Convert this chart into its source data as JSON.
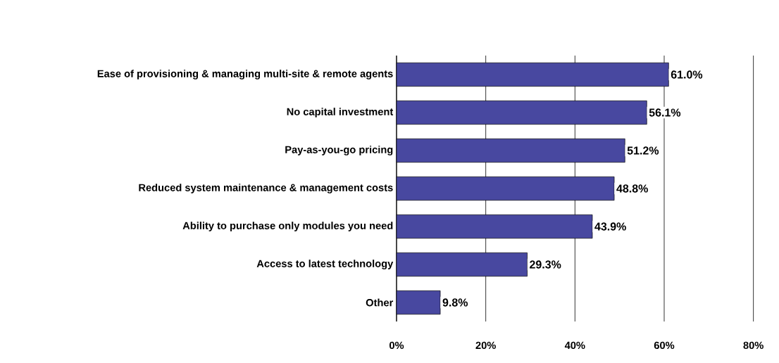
{
  "chart_data": {
    "type": "bar",
    "orientation": "horizontal",
    "categories": [
      "Ease of provisioning & managing multi-site & remote agents",
      "No capital investment",
      "Pay-as-you-go pricing",
      "Reduced system maintenance & management costs",
      "Ability to purchase only modules you need",
      "Access to latest technology",
      "Other"
    ],
    "values": [
      61.0,
      56.1,
      51.2,
      48.8,
      43.9,
      29.3,
      9.8
    ],
    "value_labels": [
      "61.0%",
      "56.1%",
      "51.2%",
      "48.8%",
      "43.9%",
      "29.3%",
      "9.8%"
    ],
    "color": "#4848a0",
    "xlim": [
      0,
      80
    ],
    "xticks": [
      {
        "value": 0,
        "label": "0%"
      },
      {
        "value": 20,
        "label": "20%"
      },
      {
        "value": 40,
        "label": "40%"
      },
      {
        "value": 60,
        "label": "60%"
      },
      {
        "value": 80,
        "label": "80%"
      }
    ],
    "grid": "x"
  }
}
